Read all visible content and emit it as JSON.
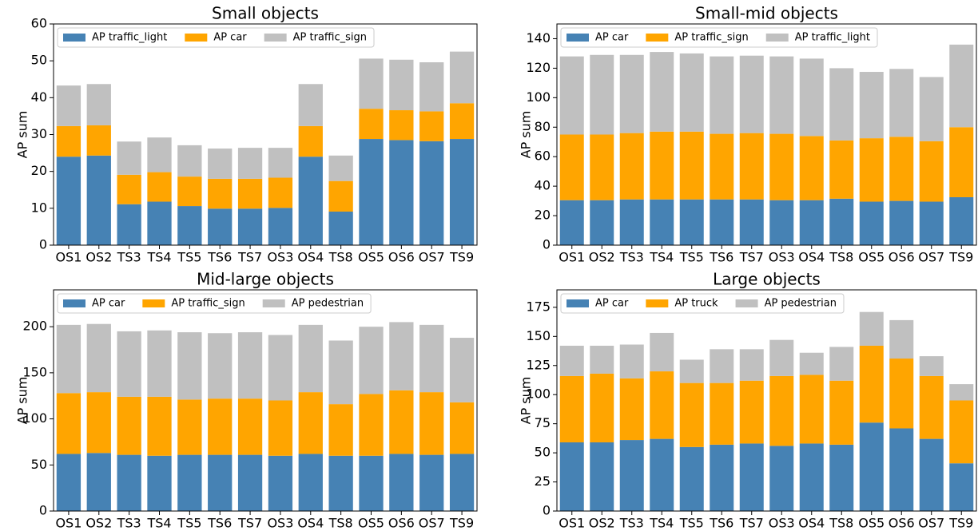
{
  "chart_data": [
    {
      "type": "bar",
      "stacked": true,
      "title": "Small objects",
      "ylabel": "AP sum",
      "categories": [
        "OS1",
        "OS2",
        "TS3",
        "TS4",
        "TS5",
        "TS6",
        "TS7",
        "OS3",
        "OS4",
        "TS8",
        "OS5",
        "OS6",
        "OS7",
        "TS9"
      ],
      "series": [
        {
          "name": "AP traffic_light",
          "color": "#4682b4",
          "values": [
            24.0,
            24.3,
            11.1,
            11.8,
            10.6,
            9.9,
            9.9,
            10.1,
            24.0,
            9.1,
            28.8,
            28.5,
            28.2,
            28.8
          ]
        },
        {
          "name": "AP car",
          "color": "#ffa500",
          "values": [
            8.3,
            8.2,
            8.0,
            8.0,
            8.0,
            8.1,
            8.1,
            8.2,
            8.3,
            8.3,
            8.2,
            8.1,
            8.1,
            9.7
          ]
        },
        {
          "name": "AP traffic_sign",
          "color": "#c0c0c0",
          "values": [
            11.0,
            11.2,
            9.0,
            9.4,
            8.5,
            8.2,
            8.4,
            8.1,
            11.4,
            6.9,
            13.6,
            13.7,
            13.3,
            14.0
          ]
        }
      ],
      "ylim": [
        0,
        60
      ],
      "yticks": [
        0,
        10,
        20,
        30,
        40,
        50,
        60
      ],
      "legend": "upper left"
    },
    {
      "type": "bar",
      "stacked": true,
      "title": "Small-mid objects",
      "ylabel": "AP sum",
      "categories": [
        "OS1",
        "OS2",
        "TS3",
        "TS4",
        "TS5",
        "TS6",
        "TS7",
        "OS3",
        "OS4",
        "TS8",
        "OS5",
        "OS6",
        "OS7",
        "TS9"
      ],
      "series": [
        {
          "name": "AP car",
          "color": "#4682b4",
          "values": [
            30.5,
            30.5,
            31,
            31,
            31,
            31,
            31,
            30.5,
            30.5,
            31.5,
            29.5,
            30,
            29.5,
            32.5
          ]
        },
        {
          "name": "AP traffic_sign",
          "color": "#ffa500",
          "values": [
            44.5,
            44.5,
            45,
            46,
            46,
            44.5,
            45,
            45,
            43.5,
            39.5,
            43,
            43.5,
            41,
            47.5
          ]
        },
        {
          "name": "AP traffic_light",
          "color": "#c0c0c0",
          "values": [
            53,
            54,
            53,
            54,
            53,
            52.5,
            52.5,
            52.5,
            52.5,
            49,
            45,
            46,
            43.5,
            56
          ]
        }
      ],
      "ylim": [
        0,
        150
      ],
      "yticks": [
        0,
        20,
        40,
        60,
        80,
        100,
        120,
        140
      ],
      "legend": "upper left"
    },
    {
      "type": "bar",
      "stacked": true,
      "title": "Mid-large objects",
      "ylabel": "AP sum",
      "categories": [
        "OS1",
        "OS2",
        "TS3",
        "TS4",
        "TS5",
        "TS6",
        "TS7",
        "OS3",
        "OS4",
        "TS8",
        "OS5",
        "OS6",
        "OS7",
        "TS9"
      ],
      "series": [
        {
          "name": "AP car",
          "color": "#4682b4",
          "values": [
            62,
            63,
            61,
            60,
            61,
            61,
            61,
            60,
            62,
            60,
            60,
            62,
            61,
            62
          ]
        },
        {
          "name": "AP traffic_sign",
          "color": "#ffa500",
          "values": [
            66,
            66,
            63,
            64,
            60,
            61,
            61,
            60,
            67,
            56,
            67,
            69,
            68,
            56
          ]
        },
        {
          "name": "AP pedestrian",
          "color": "#c0c0c0",
          "values": [
            74,
            74,
            71,
            72,
            73,
            71,
            72,
            71,
            73,
            69,
            73,
            74,
            73,
            70
          ]
        }
      ],
      "ylim": [
        0,
        240
      ],
      "yticks": [
        0,
        50,
        100,
        150,
        200
      ],
      "legend": "upper left"
    },
    {
      "type": "bar",
      "stacked": true,
      "title": "Large objects",
      "ylabel": "AP sum",
      "categories": [
        "OS1",
        "OS2",
        "TS3",
        "TS4",
        "TS5",
        "TS6",
        "TS7",
        "OS3",
        "OS4",
        "TS8",
        "OS5",
        "OS6",
        "OS7",
        "TS9"
      ],
      "series": [
        {
          "name": "AP car",
          "color": "#4682b4",
          "values": [
            59,
            59,
            61,
            62,
            55,
            57,
            58,
            56,
            58,
            57,
            76,
            71,
            62,
            41
          ]
        },
        {
          "name": "AP truck",
          "color": "#ffa500",
          "values": [
            57,
            59,
            53,
            58,
            55,
            53,
            54,
            60,
            59,
            55,
            66,
            60,
            54,
            54
          ]
        },
        {
          "name": "AP pedestrian",
          "color": "#c0c0c0",
          "values": [
            26,
            24,
            29,
            33,
            20,
            29,
            27,
            31,
            19,
            29,
            29,
            33,
            17,
            14
          ]
        }
      ],
      "ylim": [
        0,
        190
      ],
      "yticks": [
        0,
        25,
        50,
        75,
        100,
        125,
        150,
        175
      ],
      "legend": "upper left"
    }
  ]
}
